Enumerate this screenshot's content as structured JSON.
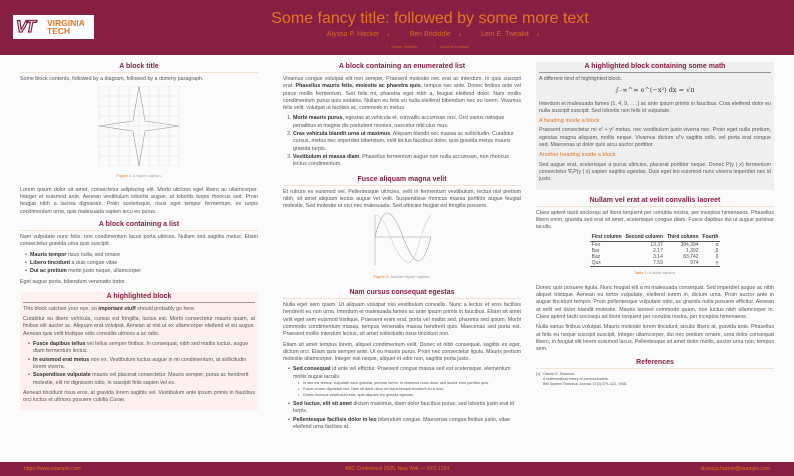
{
  "header": {
    "logo_text": "VIRGINIA TECH",
    "logo_mark": "VT",
    "title": "Some fancy title: followed by some more text",
    "authors": [
      {
        "name": "Alyssa P. Hacker",
        "aff": "1"
      },
      {
        "name": "Ben Bitdiddle",
        "aff": "2"
      },
      {
        "name": "Lem E. Tweakit",
        "aff": "2"
      }
    ],
    "institutes": [
      {
        "num": "1",
        "name": "Some Institute"
      },
      {
        "num": "2",
        "name": "Another Institute"
      }
    ]
  },
  "footer": {
    "left": "https://www.example.com",
    "center": "ABC Conference 2025, New York — XYZ-1234",
    "right": "alyssa.p.hacker@example.com"
  },
  "col1": {
    "b1": {
      "title": "A block title",
      "intro": "Some block contents, followed by a diagram, followed by a dummy paragraph.",
      "fig_label": "Figure 1:",
      "fig_caption": "A figure caption.",
      "para": "Lorem ipsum dolor sit amet, consectetur adipiscing elit. Morbi ultricies eget libero ac ullamcorper. Integer et euismod ante. Aenean vestibulum lobortis augue, ut lobortis turpis rhoncus sed. Proin feugiat nibh a lacinia dignissim. Proin scelerisque, risus eget tempor fermentum, ex turpis condimentum urna, quis malesuada sapien arcu eu purus."
    },
    "b2": {
      "title": "A block containing a list",
      "intro": "Nam vulputate nunc felis, non condimentum lacus porta ultrices. Nullam sed sagittis metus. Etiam consectetur gravida urna quis suscipit.",
      "items": [
        {
          "bold": "Mauris tempor",
          "text": " risus nulla, sed ornare"
        },
        {
          "bold": "Libero tincidunt",
          "text": " a duis congue vitae"
        },
        {
          "bold": "Dui ac pretium",
          "text": " morbi justo neque, ullamcorper"
        }
      ],
      "outro": "Eget augue porta, bibendum venenatis tortor."
    },
    "b3": {
      "title": "A highlighted block",
      "p1_pre": "This block catches your eye, so ",
      "p1_bold": "important stuff",
      "p1_post": " should probably go here.",
      "p2": "Curabitur eu libero vehicula, cursus est fringilla, luctus est. Morbi consectetur mauris quam, at finibus elit auctor ac. Aliquam erat volutpat. Aenean at nisl ut ex ullamcorper eleifend et eu augue. Aenean quis velit tristique odio convallis ultrices a ac odio.",
      "items": [
        {
          "bold": "Fusce dapibus tellus",
          "text": " vel tellus semper finibus. In consequat, nibh sed mattis luctus, augue diam fermentum lectus."
        },
        {
          "bold": "In euismod erat metus",
          "text": " non ex. Vestibulum luctus augue in mi condimentum, at sollicitudin lorem viverra."
        },
        {
          "bold": "Suspendisse vulputate",
          "text": " mauris vel placerat consectetur. Mauris semper, purus ac hendrerit molestie, elit mi dignissim odio, in suscipit felis sapien vel ex."
        }
      ],
      "p3": "Aenean tincidunt risus eros, at gravida lorem sagittis vel. Vestibulum ante ipsum primis in faucibus orci luctus et ultrices posuere cubilia Curae."
    }
  },
  "col2": {
    "b1": {
      "title": "A block containing an enumerated list",
      "p_pre": "Vivamus congue volutpat elit non semper. Praesent molestie nec erat ac interdum. In quis suscipit erat. ",
      "p_bold": "Phasellus mauris felis, molestie ac pharetra quis",
      "p_post": ", tempus nec ante. Donec finibus ante vel purus mollis fermentum. Sed felis mi, pharetra eget nibh a, feugiat eleifend dolor. Nam mollis condimentum purus quis sodales. Nullam eu felis eu nulla eleifend bibendum nec eu lorem. Vivamus felis velit, volutpat ut facilisis ac, commodo in metus.",
      "items": [
        {
          "bold": "Morbi mauris purus",
          "text": ", egestas at vehicula et, convallis accumsan orci. Orci varius natoque penatibus et magnis dis parturient montes, nascetur ridiculus mus."
        },
        {
          "bold": "Cras vehicula blandit urna ut maximus",
          "text": ". Aliquam blandit nec massa ac sollicitudin. Curabitur cursus, metus nec imperdiet bibendum, velit lectus faucibus dolor, quis gravida metus mauris gravida turpis."
        },
        {
          "bold": "Vestibulum et massa diam",
          "text": ". Phasellus fermentum augue non nulla accumsan, non rhoncus lectus condimentum."
        }
      ]
    },
    "b2": {
      "title": "Fusce aliquam magna velit",
      "para": "Et rutrum ex euismod vel. Pellentesque ultricies, velit in fermentum vestibulum, lectus nisi pretium nibh, sit amet aliquam lectus augue vel velit. Suspendisse rhoncus massa porttitor augue feugiat molestie. Sed molestie ut orci nec malesuada. Sed ultricies feugiat est fringilla posuere.",
      "fig_label": "Figure 2:",
      "fig_caption": "Another figure caption."
    },
    "b3": {
      "title": "Nam cursus consequat egestas",
      "p1": "Nulla eget sem quam. Ut aliquam volutpat nisi vestibulum convallis. Nunc a lectus et eros facilisis hendrerit eu non urna. Interdum et malesuada fames ac ante ipsum primis in faucibus. Etiam sit amet velit eget sem euismod tristique. Praesent enim erat, porta vel mattis sed, pharetra sed ipsum. Morbi commodo condimentum massa, tempus venenatis massa hendrerit quis. Maecenas sed porta est. Praesent mollis interdum lectus, sit amet sollicitudin risus tincidunt non.",
      "p2": "Etiam sit amet tempus lorem, aliquet condimentum velit. Donec et nibh consequat, sagittis ex eget, dictum orci. Etiam quis semper ante. Ut eu mauris purus. Proin nec consectetur ligula. Mauris pretium molestie ullamcorper. Integer nisi neque, aliquet et odio non, sagittis porta justo.",
      "items": [
        {
          "bold": "Sed consequat",
          "text": " id ante vel efficitur. Praesent congue massa sed est scelerisque, elementum mollis augue iaculis.",
          "sub": [
            "In sed est finibus, vulputate nunc gravida, pulvinar lorem. In maximus nunc dolor, sed auctor eros porttitor quis.",
            "Fusce ornare dignissim nisi. Nam sit amet risus vel lacus tempor tincidunt eu a arcu.",
            "Donec rhoncus vestibulum erat, quis aliquam leo gravida egestas."
          ]
        },
        {
          "bold": "Sed luctus, elit sit amet",
          "text": " dictum maximus, diam dolor faucibus purus, sed lobortis justo erat id turpis."
        },
        {
          "bold": "Pellentesque facilisis dolor in leo",
          "text": " bibendum congue. Maecenas congue finibus justo, vitae eleifend urna facilisis at."
        }
      ]
    }
  },
  "col3": {
    "b1": {
      "title": "A highlighted block containing some math",
      "intro": "A different kind of highlighted block.",
      "math": "∫₋∞^∞ e^(−x²) dx = √π",
      "p1": "Interdum et malesuada fames {1, 4, 9, . . .} ac ante ipsum primis in faucibus. Cras eleifend dolor eu nulla suscipit suscipit. Sed lobortis non felis id vulputate.",
      "h1": "A heading inside a block",
      "p2": "Praesent consectetur mi x² + y² metus, nec vestibulum justo viverra nec. Proin eget nulla pretium, egestas magna aliquam, mollis neque. Vivamus dictum uᵀv sagittis odio, vel porta erat congue sed. Maecenas ut dolor quis arcu auctor porttitor.",
      "h2": "Another heading inside a block",
      "p3": "Sed augue erat, scelerisque a purus ultricies, placerat porttitor neque. Donec P(y | x) fermentum consectetur ∇ₓP(y | x) sapien sagittis egestas. Duis eget leo euismod nunc viverra imperdiet nec id justo."
    },
    "b2": {
      "title": "Nullam vel erat at velit convallis laoreet",
      "intro": "Class aptent taciti sociosqu ad litora torquent per conubia nostra, per inceptos himenaeos. Phasellus libero enim, gravida sed erat sit amet, scelerisque congue diam. Fusce dapibus dui ut augue pulvinar iaculis.",
      "table": {
        "headers": [
          "First column",
          "Second column",
          "Third column",
          "Fourth"
        ],
        "rows": [
          [
            "Foo",
            "13.37",
            "384,394",
            "α"
          ],
          [
            "Bar",
            "2.17",
            "1,392",
            "β"
          ],
          [
            "Baz",
            "3.14",
            "83,742",
            "δ"
          ],
          [
            "Qux",
            "7.59",
            "974",
            "γ"
          ]
        ]
      },
      "tab_label": "Table 1:",
      "tab_caption": "A table caption.",
      "p1": "Donec quis posuere ligula. Nunc feugiat elit a mi malesuada consequat. Sed imperdiet augue ac nibh aliquet tristique. Aenean eu tortor vulputate, eleifend lorem in, dictum urna. Proin auctor ante in augue tincidunt tempor. Proin pellentesque vulputate odio, ac gravida nulla posuere efficitur. Aenean at velit vel dolor blandit molestie. Mauris laoreet commodo quam, non luctus nibh ullamcorper in. Class aptent taciti sociosqu ad litora torquent per conubia nostra, per inceptos himenaeos.",
      "p2": "Nulla varius finibus volutpat. Mauris molestie lorem tincidunt, iaculis libero at, gravida ante. Phasellus at felis eu neque suscipit suscipit. Integer ullamcorper, dui nec pretium ornare, urna dolor consequat libero, in feugiat elit lorem euismod lacus. Pellentesque sit amet dolor mollis, auctor urna non, tempus sem."
    },
    "refs": {
      "title": "References",
      "items": [
        {
          "num": "[1]",
          "author": "Claude E. Shannon.",
          "title": "A mathematical theory of communication.",
          "venue": "Bell System Technical Journal, 27(3):379–423, 1948."
        }
      ]
    }
  },
  "colors": {
    "maroon": "#861F41",
    "orange": "#E5751F",
    "highlight_bg": "#fdf0ef",
    "math_bg": "#efefef"
  }
}
